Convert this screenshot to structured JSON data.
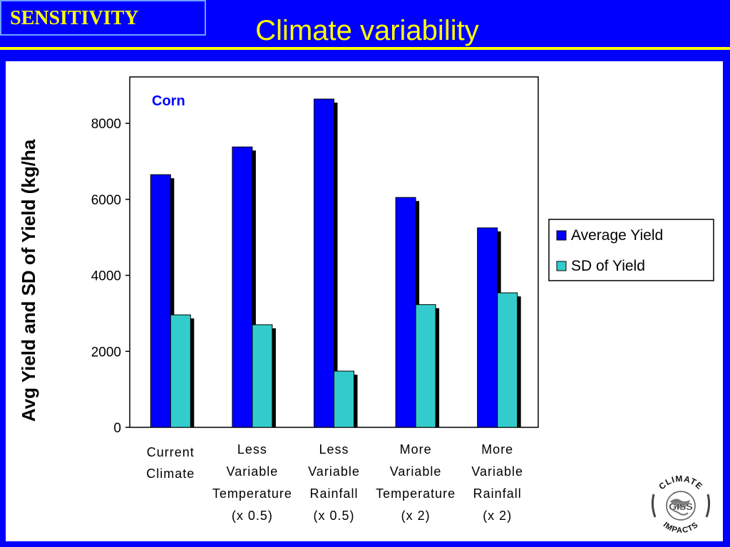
{
  "header": {
    "tag": "SENSITIVITY",
    "title": "Climate variability"
  },
  "chart_data": {
    "type": "bar",
    "title": "Corn",
    "ylabel": "Avg Yield and SD of Yield (kg/ha",
    "xlabel": "",
    "ylim": [
      0,
      9500
    ],
    "yticks": [
      0,
      2000,
      4000,
      6000,
      8000
    ],
    "grid": false,
    "legend_position": "right",
    "categories": [
      [
        "Current",
        "Climate"
      ],
      [
        "Less",
        "Variable",
        "Temperature",
        "(x 0.5)"
      ],
      [
        "Less",
        "Variable",
        "Rainfall",
        "(x 0.5)"
      ],
      [
        "More",
        "Variable",
        "Temperature",
        "(x 2)"
      ],
      [
        "More",
        "Variable",
        "Rainfall",
        "(x 2)"
      ]
    ],
    "series": [
      {
        "name": "Average Yield",
        "color": "#0000ff",
        "values": [
          6650,
          7380,
          8640,
          6050,
          5250
        ]
      },
      {
        "name": "SD of Yield",
        "color": "#33cccc",
        "values": [
          2960,
          2700,
          1480,
          3230,
          3540
        ]
      }
    ]
  },
  "logo": {
    "top_text": "CLIMATE",
    "bottom_text": "IMPACTS",
    "center_text": "GISS",
    "icon": "climate-impacts-seal-icon"
  }
}
